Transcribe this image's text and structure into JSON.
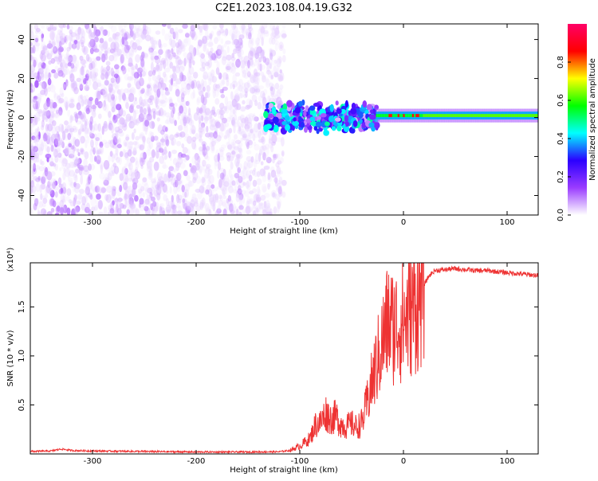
{
  "title": "C2E1.2023.108.04.19.G32",
  "colorbar": {
    "label": "Normalized spectral amplitude",
    "range": [
      0,
      1
    ],
    "ticks": [
      0.0,
      0.2,
      0.4,
      0.6,
      0.8
    ],
    "tick_labels": [
      "0.0",
      "0.2",
      "0.4",
      "0.6",
      "0.8"
    ],
    "stops": [
      "#ffffff",
      "#9a3cff",
      "#2b00ff",
      "#00ffff",
      "#00ff00",
      "#ffff00",
      "#ff0000",
      "#ff0066"
    ]
  },
  "chart_data": [
    {
      "type": "heatmap",
      "xlabel": "Height of straight line (km)",
      "ylabel": "Frequency (Hz)",
      "xlim": [
        -360,
        130
      ],
      "ylim": [
        -50,
        48
      ],
      "xticks": [
        -300,
        -200,
        -100,
        0,
        100
      ],
      "xtick_labels": [
        "-300",
        "-200",
        "-100",
        "0",
        "100"
      ],
      "yticks": [
        -40,
        -20,
        0,
        20,
        40
      ],
      "ytick_labels": [
        "-40",
        "-20",
        "0",
        "20",
        "40"
      ],
      "regions": [
        {
          "x": [
            -360,
            -115
          ],
          "freq": [
            -50,
            48
          ],
          "amplitude": [
            0.0,
            0.15
          ],
          "description_level": "noise"
        },
        {
          "x": [
            -133,
            -25
          ],
          "freq": [
            -12,
            10
          ],
          "amplitude": [
            0.05,
            0.5
          ]
        },
        {
          "x": [
            -25,
            130
          ],
          "freq": [
            -3,
            4
          ],
          "amplitude": [
            0.3,
            0.95
          ],
          "center_freq": 1
        }
      ]
    },
    {
      "type": "line",
      "xlabel": "Height of straight line (km)",
      "ylabel": "SNR (10 * v/v)",
      "y_multiplier": "(x10⁴)",
      "xlim": [
        -360,
        130
      ],
      "ylim": [
        0,
        19500
      ],
      "xticks": [
        -300,
        -200,
        -100,
        0,
        100
      ],
      "xtick_labels": [
        "-300",
        "-200",
        "-100",
        "0",
        "100"
      ],
      "yticks": [
        5000,
        10000,
        15000
      ],
      "ytick_labels": [
        "0.5",
        "1.0",
        "1.5"
      ],
      "color": "#ee3333",
      "series": [
        {
          "x": [
            -360,
            -340,
            -330,
            -320,
            -300,
            -250,
            -200,
            -150,
            -120,
            -110,
            -100,
            -95,
            -90,
            -85,
            -80,
            -75,
            -70,
            -65,
            -60,
            -55,
            -50,
            -45,
            -40,
            -35,
            -30,
            -25,
            -20,
            -15,
            -10,
            -5,
            0,
            5,
            10,
            15,
            20,
            25,
            30,
            40,
            50,
            60,
            70,
            80,
            90,
            100,
            110,
            120,
            130
          ],
          "values": [
            250,
            300,
            500,
            350,
            300,
            250,
            200,
            200,
            220,
            350,
            800,
            1200,
            1600,
            3000,
            3200,
            4200,
            3600,
            3800,
            3000,
            2800,
            3100,
            2700,
            3200,
            5200,
            7500,
            9500,
            11500,
            13500,
            13000,
            13200,
            13500,
            14200,
            15000,
            15500,
            17300,
            18200,
            18700,
            18800,
            18900,
            18800,
            18700,
            18700,
            18600,
            18500,
            18400,
            18300,
            18200
          ]
        }
      ]
    }
  ]
}
